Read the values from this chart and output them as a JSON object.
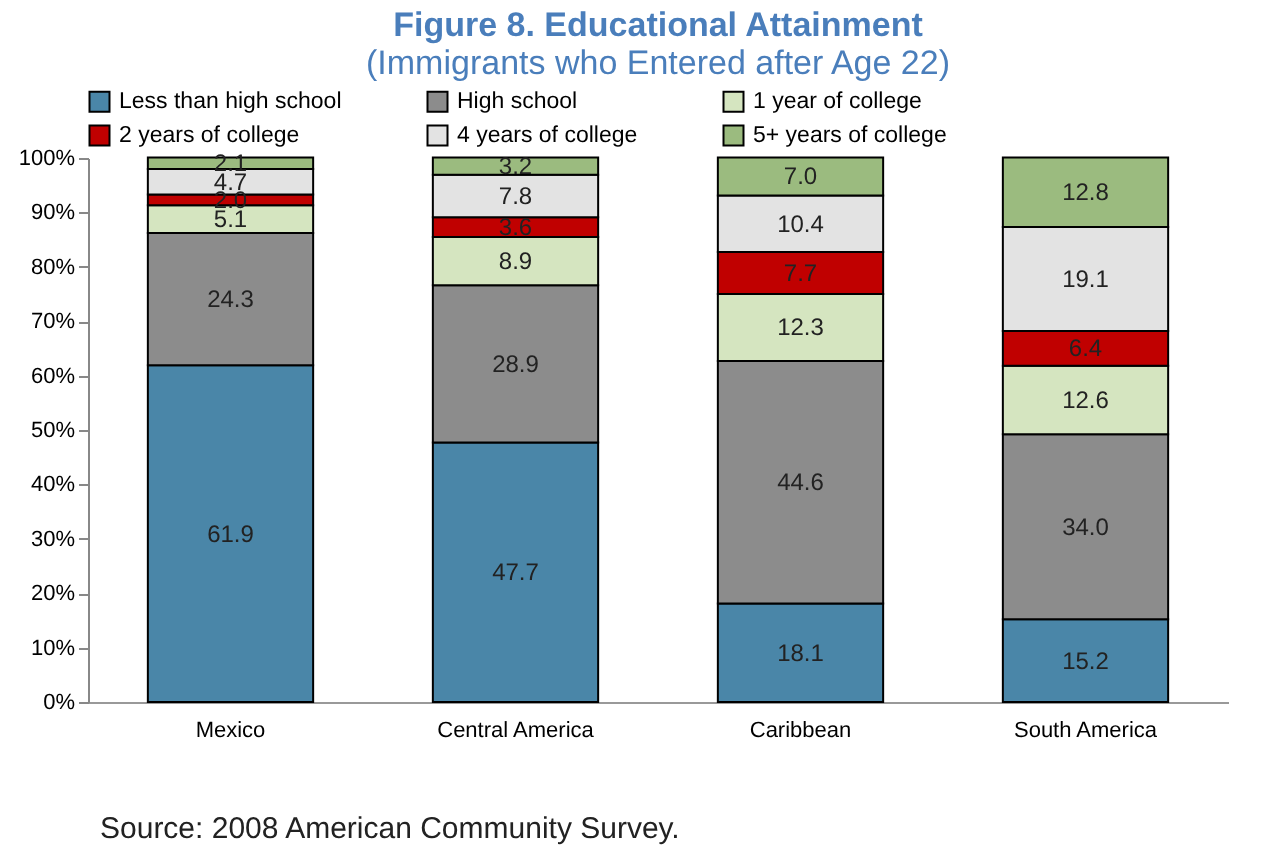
{
  "chart_data": {
    "type": "bar",
    "stacked": true,
    "title": "Figure 8. Educational Attainment",
    "subtitle": "(Immigrants who Entered after Age 22)",
    "categories": [
      "Mexico",
      "Central America",
      "Caribbean",
      "South America"
    ],
    "series": [
      {
        "name": "Less than high school",
        "color": "#4a86a8",
        "values": [
          61.9,
          47.7,
          18.1,
          15.2
        ],
        "value_labels": [
          "61.9",
          "47.7",
          "18.1",
          "15.2"
        ]
      },
      {
        "name": "High school",
        "color": "#8c8c8c",
        "values": [
          24.3,
          28.9,
          44.6,
          34.0
        ],
        "value_labels": [
          "24.3",
          "28.9",
          "44.6",
          "34.0"
        ]
      },
      {
        "name": "1 year of college",
        "color": "#d5e5c0",
        "values": [
          5.1,
          8.9,
          12.3,
          12.6
        ],
        "value_labels": [
          "5.1",
          "8.9",
          "12.3",
          "12.6"
        ]
      },
      {
        "name": "2 years of college",
        "color": "#c00000",
        "values": [
          2.0,
          3.6,
          7.7,
          6.4
        ],
        "value_labels": [
          "2.0",
          "3.6",
          "7.7",
          "6.4"
        ]
      },
      {
        "name": "4 years of college",
        "color": "#e3e3e3",
        "values": [
          4.7,
          7.8,
          10.4,
          19.1
        ],
        "value_labels": [
          "4.7",
          "7.8",
          "10.4",
          "19.1"
        ]
      },
      {
        "name": "5+ years of college",
        "color": "#9bbb7f",
        "values": [
          2.1,
          3.2,
          7.0,
          12.8
        ],
        "value_labels": [
          "2.1",
          "3.2",
          "7.0",
          "12.8"
        ]
      }
    ],
    "ylim": [
      0,
      100
    ],
    "yticks": [
      {
        "value": 0,
        "label": "0%"
      },
      {
        "value": 10,
        "label": "10%"
      },
      {
        "value": 20,
        "label": "20%"
      },
      {
        "value": 30,
        "label": "30%"
      },
      {
        "value": 40,
        "label": "40%"
      },
      {
        "value": 50,
        "label": "50%"
      },
      {
        "value": 60,
        "label": "60%"
      },
      {
        "value": 70,
        "label": "70%"
      },
      {
        "value": 80,
        "label": "80%"
      },
      {
        "value": 90,
        "label": "90%"
      },
      {
        "value": 100,
        "label": "100%"
      }
    ],
    "legend": "top",
    "grid": false,
    "annotations": [
      "Source: 2008  American Community Survey."
    ]
  }
}
